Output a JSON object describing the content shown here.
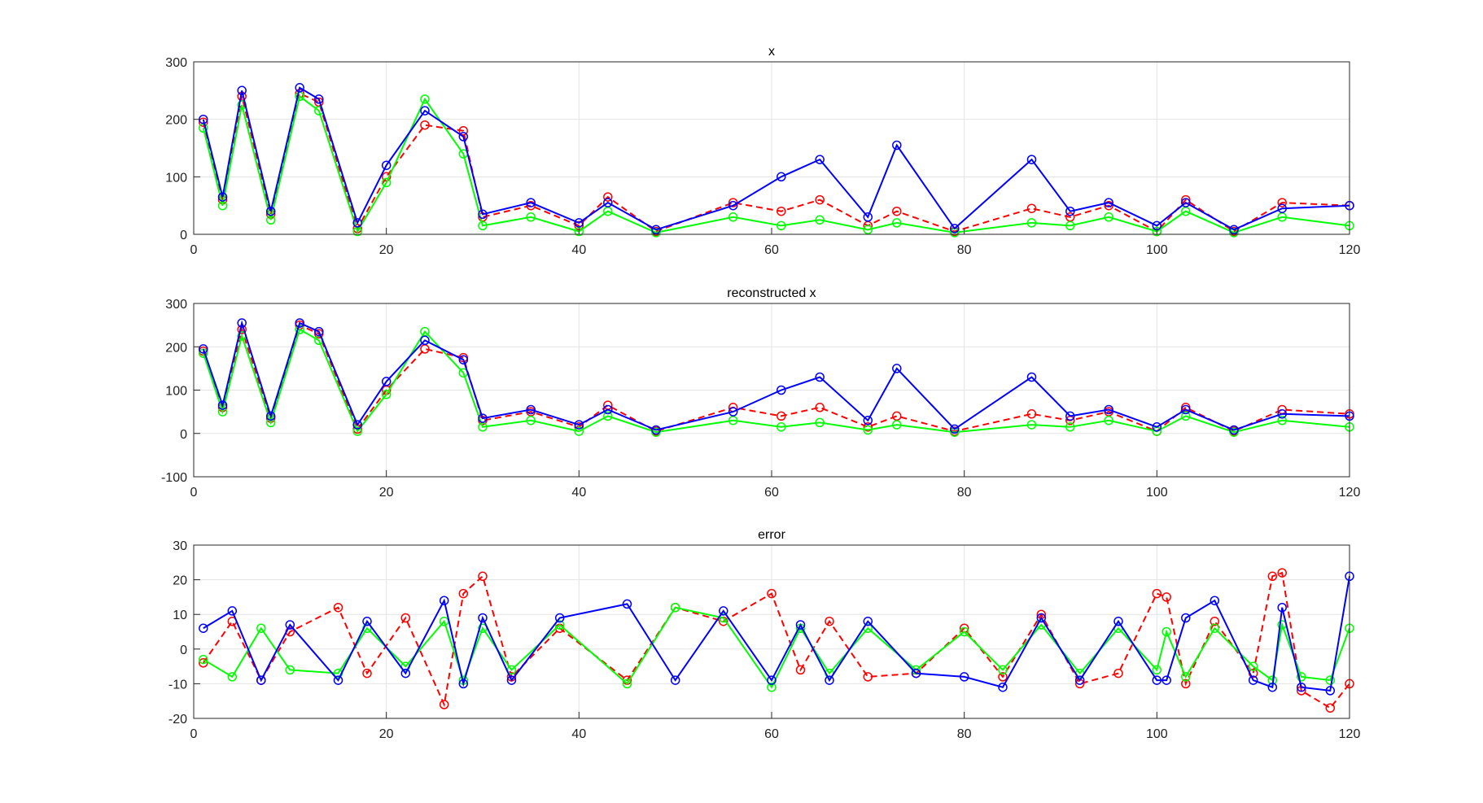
{
  "chart_data": [
    {
      "type": "line",
      "title": "x",
      "xlabel": "",
      "ylabel": "",
      "xlim": [
        0,
        120
      ],
      "ylim": [
        0,
        300
      ],
      "xticks": [
        "0",
        "20",
        "40",
        "60",
        "80",
        "100",
        "120"
      ],
      "yticks": [
        "0",
        "100",
        "200",
        "300"
      ],
      "grid": true,
      "marker": "circle",
      "series": [
        {
          "color": "#ff0000",
          "style": "dashed",
          "x": [
            1,
            3,
            5,
            8,
            11,
            13,
            17,
            20,
            24,
            28,
            30,
            35,
            40,
            43,
            48,
            56,
            61,
            65,
            70,
            73,
            79,
            87,
            91,
            95,
            100,
            103,
            108,
            113,
            120
          ],
          "y": [
            195,
            60,
            240,
            35,
            245,
            230,
            10,
            100,
            190,
            180,
            30,
            50,
            15,
            65,
            5,
            55,
            40,
            60,
            15,
            40,
            5,
            45,
            30,
            50,
            5,
            60,
            5,
            55,
            50
          ]
        },
        {
          "color": "#00ff00",
          "style": "solid",
          "x": [
            1,
            3,
            5,
            8,
            11,
            13,
            17,
            20,
            24,
            28,
            30,
            35,
            40,
            43,
            48,
            56,
            61,
            65,
            70,
            73,
            79,
            87,
            91,
            95,
            100,
            103,
            108,
            113,
            120
          ],
          "y": [
            185,
            50,
            225,
            25,
            240,
            215,
            5,
            90,
            235,
            140,
            15,
            30,
            5,
            40,
            3,
            30,
            15,
            25,
            8,
            20,
            3,
            20,
            15,
            30,
            5,
            40,
            3,
            30,
            15
          ]
        },
        {
          "color": "#0000ff",
          "style": "solid",
          "x": [
            1,
            3,
            5,
            8,
            11,
            13,
            17,
            20,
            24,
            28,
            30,
            35,
            40,
            43,
            48,
            56,
            61,
            65,
            70,
            73,
            79,
            87,
            91,
            95,
            100,
            103,
            108,
            113,
            120
          ],
          "y": [
            200,
            65,
            250,
            40,
            255,
            235,
            20,
            120,
            215,
            170,
            35,
            55,
            20,
            55,
            8,
            50,
            100,
            130,
            30,
            155,
            10,
            130,
            40,
            55,
            15,
            55,
            8,
            45,
            50
          ]
        }
      ]
    },
    {
      "type": "line",
      "title": "reconstructed x",
      "xlabel": "",
      "ylabel": "",
      "xlim": [
        0,
        120
      ],
      "ylim": [
        -100,
        300
      ],
      "xticks": [
        "0",
        "20",
        "40",
        "60",
        "80",
        "100",
        "120"
      ],
      "yticks": [
        "-100",
        "0",
        "100",
        "200",
        "300"
      ],
      "grid": true,
      "marker": "circle",
      "series": [
        {
          "color": "#ff0000",
          "style": "dashed",
          "x": [
            1,
            3,
            5,
            8,
            11,
            13,
            17,
            20,
            24,
            28,
            30,
            35,
            40,
            43,
            48,
            56,
            61,
            65,
            70,
            73,
            79,
            87,
            91,
            95,
            100,
            103,
            108,
            113,
            120
          ],
          "y": [
            190,
            60,
            240,
            35,
            250,
            230,
            10,
            100,
            195,
            175,
            30,
            50,
            15,
            65,
            5,
            60,
            40,
            60,
            15,
            40,
            5,
            45,
            30,
            50,
            5,
            60,
            5,
            55,
            45
          ]
        },
        {
          "color": "#00ff00",
          "style": "solid",
          "x": [
            1,
            3,
            5,
            8,
            11,
            13,
            17,
            20,
            24,
            28,
            30,
            35,
            40,
            43,
            48,
            56,
            61,
            65,
            70,
            73,
            79,
            87,
            91,
            95,
            100,
            103,
            108,
            113,
            120
          ],
          "y": [
            185,
            50,
            225,
            25,
            240,
            215,
            5,
            90,
            235,
            140,
            15,
            30,
            5,
            40,
            3,
            30,
            15,
            25,
            8,
            20,
            3,
            20,
            15,
            30,
            5,
            40,
            3,
            30,
            15
          ]
        },
        {
          "color": "#0000ff",
          "style": "solid",
          "x": [
            1,
            3,
            5,
            8,
            11,
            13,
            17,
            20,
            24,
            28,
            30,
            35,
            40,
            43,
            48,
            56,
            61,
            65,
            70,
            73,
            79,
            87,
            91,
            95,
            100,
            103,
            108,
            113,
            120
          ],
          "y": [
            195,
            65,
            255,
            40,
            255,
            235,
            20,
            120,
            215,
            170,
            35,
            55,
            20,
            55,
            8,
            50,
            100,
            130,
            30,
            150,
            10,
            130,
            40,
            55,
            15,
            55,
            8,
            45,
            40
          ]
        }
      ]
    },
    {
      "type": "line",
      "title": "error",
      "xlabel": "",
      "ylabel": "",
      "xlim": [
        0,
        120
      ],
      "ylim": [
        -20,
        30
      ],
      "xticks": [
        "0",
        "20",
        "40",
        "60",
        "80",
        "100",
        "120"
      ],
      "yticks": [
        "-20",
        "-10",
        "0",
        "10",
        "20",
        "30"
      ],
      "grid": true,
      "marker": "circle",
      "series": [
        {
          "color": "#ff0000",
          "style": "dashed",
          "x": [
            1,
            4,
            7,
            10,
            15,
            18,
            22,
            26,
            28,
            30,
            33,
            38,
            45,
            50,
            55,
            60,
            63,
            66,
            70,
            75,
            80,
            84,
            88,
            92,
            96,
            100,
            101,
            103,
            106,
            110,
            112,
            113,
            115,
            118,
            120
          ],
          "y": [
            -4,
            8,
            -9,
            5,
            12,
            -7,
            9,
            -16,
            16,
            21,
            -8,
            6,
            -9,
            12,
            8,
            16,
            -6,
            8,
            -8,
            -7,
            6,
            -8,
            10,
            -10,
            -7,
            16,
            15,
            -10,
            8,
            -7,
            21,
            22,
            -12,
            -17,
            -10
          ]
        },
        {
          "color": "#00ff00",
          "style": "solid",
          "x": [
            1,
            4,
            7,
            10,
            15,
            18,
            22,
            26,
            28,
            30,
            33,
            38,
            45,
            50,
            55,
            60,
            63,
            66,
            70,
            75,
            80,
            84,
            88,
            92,
            96,
            100,
            101,
            103,
            106,
            110,
            112,
            113,
            115,
            118,
            120
          ],
          "y": [
            -3,
            -8,
            6,
            -6,
            -7,
            6,
            -5,
            8,
            -9,
            6,
            -6,
            7,
            -10,
            12,
            9,
            -11,
            6,
            -7,
            6,
            -6,
            5,
            -6,
            7,
            -7,
            6,
            -6,
            5,
            -8,
            6,
            -5,
            -9,
            7,
            -8,
            -9,
            6
          ]
        },
        {
          "color": "#0000ff",
          "style": "solid",
          "x": [
            1,
            4,
            7,
            10,
            15,
            18,
            22,
            26,
            28,
            30,
            33,
            38,
            45,
            50,
            55,
            60,
            63,
            66,
            70,
            75,
            80,
            84,
            88,
            92,
            96,
            100,
            101,
            103,
            106,
            110,
            112,
            113,
            115,
            118,
            120
          ],
          "y": [
            6,
            11,
            -9,
            7,
            -9,
            8,
            -7,
            14,
            -10,
            9,
            -9,
            9,
            13,
            -9,
            11,
            -9,
            7,
            -9,
            8,
            -7,
            -8,
            -11,
            9,
            -9,
            8,
            -9,
            -9,
            9,
            14,
            -9,
            -11,
            12,
            -11,
            -12,
            21
          ]
        }
      ]
    }
  ]
}
